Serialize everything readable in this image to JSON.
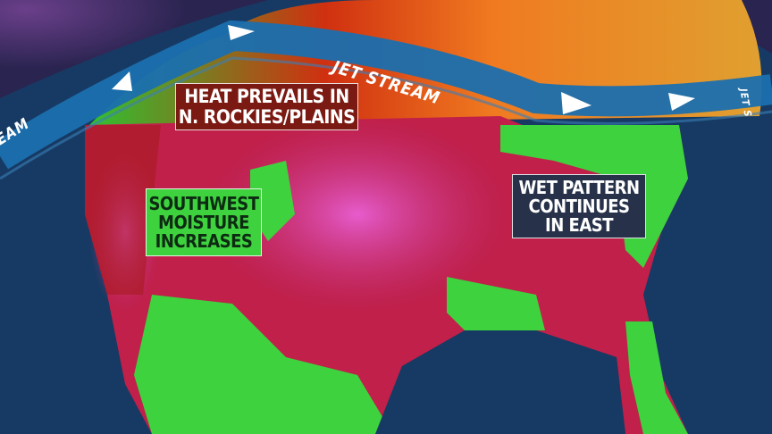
{
  "labels": {
    "heat": [
      "HEAT PREVAILS IN",
      "N. ROCKIES/PLAINS"
    ],
    "southwest": [
      "SOUTHWEST",
      "MOISTURE",
      "INCREASES"
    ],
    "east": [
      "WET PATTERN",
      "CONTINUES",
      "IN EAST"
    ]
  },
  "jet_stream": {
    "main_label": "JET STREAM",
    "left_label": "EAM",
    "right_label": "JET S"
  },
  "colors": {
    "ocean": "#163a63",
    "heat": "#c0204a",
    "hot_pink": "#e050c0",
    "wet_green": "#3ed23e",
    "warm_orange": "#f07020",
    "jet_stream": "#1b6fae"
  }
}
